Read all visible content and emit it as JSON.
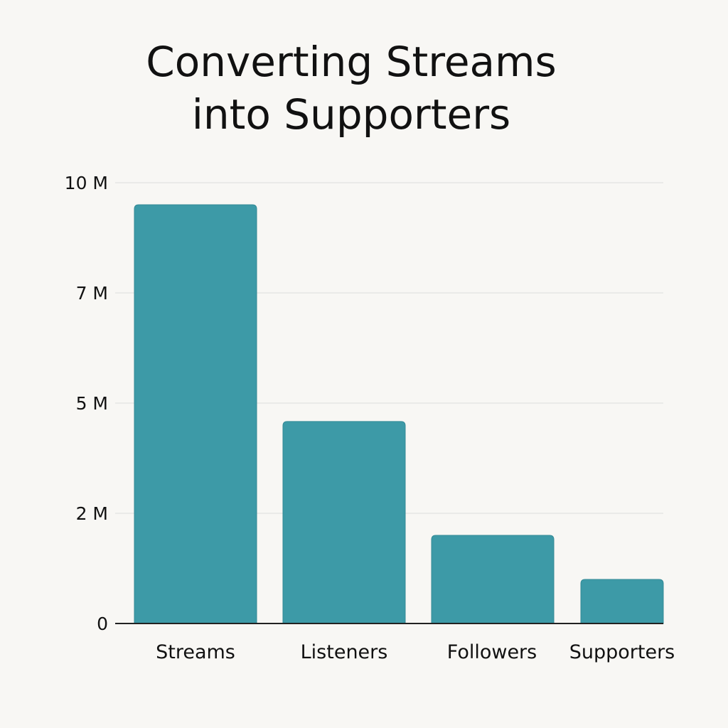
{
  "chart_data": {
    "type": "bar",
    "title_lines": [
      "Converting Streams",
      "into Supporters"
    ],
    "categories": [
      "Streams",
      "Listeners",
      "Followers",
      "Supporters"
    ],
    "values": [
      9.4,
      4.5,
      1.6,
      0.8
    ],
    "unit": "M",
    "yticks": [
      {
        "value": 0,
        "label": "0"
      },
      {
        "value": 2,
        "label": "2 M"
      },
      {
        "value": 5,
        "label": "5 M"
      },
      {
        "value": 7,
        "label": "7 M"
      },
      {
        "value": 10,
        "label": "10 M"
      }
    ],
    "ylim": [
      0,
      10
    ],
    "xlabel": "",
    "ylabel": "",
    "grid": true,
    "bar_color": "#3d9aa7",
    "axis_color": "#222222",
    "grid_color": "#dcdcdc"
  }
}
